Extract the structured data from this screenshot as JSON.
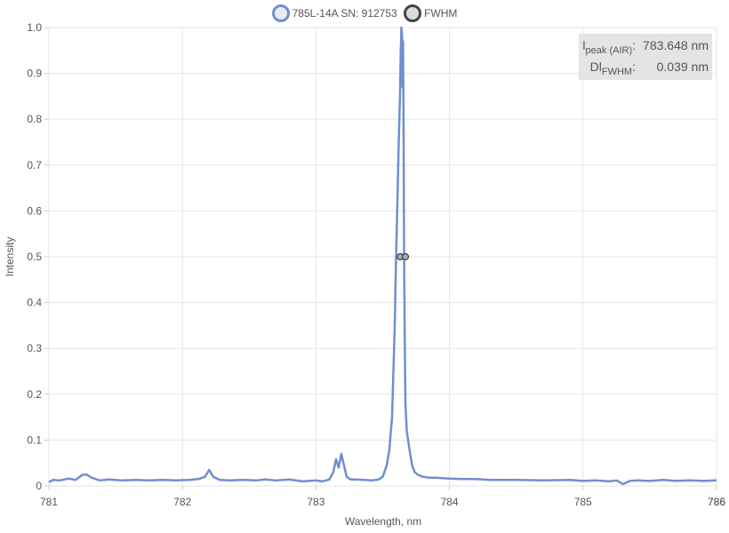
{
  "legend": {
    "series_label": "785L-14A SN: 912753",
    "fwhm_label": "FWHM"
  },
  "peak_box": {
    "peak_symbol": "l",
    "peak_sub": "peak (AIR)",
    "peak_value": "783.648 nm",
    "fwhm_symbol": "Dl",
    "fwhm_sub": "FWHM",
    "fwhm_value": "0.039 nm"
  },
  "colors": {
    "series": "#6f8fcf",
    "fwhm_marker": "#444444",
    "grid": "#e6e6e6",
    "box": "#e4e4e4"
  },
  "chart_data": {
    "type": "line",
    "xlabel": "Wavelength, nm",
    "ylabel": "Intensity",
    "xlim": [
      781,
      786
    ],
    "ylim": [
      0,
      1
    ],
    "x_ticks": [
      "781",
      "782",
      "783",
      "784",
      "785",
      "786"
    ],
    "x_end_label": "786",
    "y_ticks": [
      "0",
      "0.1",
      "0.2",
      "0.3",
      "0.4",
      "0.5",
      "0.6",
      "0.7",
      "0.8",
      "0.9",
      "1.0"
    ],
    "grid": true,
    "legend": "top",
    "series": [
      {
        "name": "785L-14A SN: 912753",
        "x": [
          781.0,
          781.03,
          781.08,
          781.15,
          781.2,
          781.25,
          781.28,
          781.32,
          781.38,
          781.45,
          781.55,
          781.65,
          781.75,
          781.85,
          781.95,
          782.05,
          782.12,
          782.17,
          782.2,
          782.23,
          782.28,
          782.35,
          782.45,
          782.55,
          782.62,
          782.7,
          782.8,
          782.9,
          783.0,
          783.05,
          783.1,
          783.13,
          783.15,
          783.17,
          783.19,
          783.21,
          783.23,
          783.26,
          783.3,
          783.36,
          783.42,
          783.47,
          783.5,
          783.53,
          783.55,
          783.57,
          783.59,
          783.6,
          783.61,
          783.62,
          783.63,
          783.635,
          783.64,
          783.645,
          783.648,
          783.652,
          783.656,
          783.66,
          783.665,
          783.67,
          783.68,
          783.69,
          783.7,
          783.72,
          783.74,
          783.76,
          783.8,
          783.85,
          783.9,
          784.0,
          784.1,
          784.2,
          784.3,
          784.5,
          784.7,
          784.9,
          785.0,
          785.1,
          785.2,
          785.25,
          785.3,
          785.35,
          785.4,
          785.5,
          785.6,
          785.7,
          785.8,
          785.9,
          786.0
        ],
        "values": [
          0.008,
          0.013,
          0.012,
          0.016,
          0.013,
          0.024,
          0.025,
          0.018,
          0.012,
          0.014,
          0.012,
          0.013,
          0.012,
          0.013,
          0.012,
          0.013,
          0.015,
          0.02,
          0.035,
          0.02,
          0.013,
          0.012,
          0.013,
          0.012,
          0.014,
          0.012,
          0.014,
          0.01,
          0.012,
          0.01,
          0.014,
          0.03,
          0.058,
          0.04,
          0.07,
          0.045,
          0.02,
          0.014,
          0.014,
          0.013,
          0.012,
          0.014,
          0.02,
          0.045,
          0.08,
          0.15,
          0.35,
          0.5,
          0.62,
          0.75,
          0.86,
          0.95,
          1.0,
          0.98,
          0.87,
          0.97,
          0.8,
          0.5,
          0.32,
          0.18,
          0.12,
          0.1,
          0.08,
          0.045,
          0.03,
          0.025,
          0.02,
          0.018,
          0.018,
          0.016,
          0.015,
          0.015,
          0.013,
          0.013,
          0.012,
          0.013,
          0.011,
          0.012,
          0.01,
          0.012,
          0.004,
          0.011,
          0.012,
          0.011,
          0.013,
          0.011,
          0.012,
          0.011,
          0.012
        ]
      }
    ],
    "fwhm_points": [
      [
        783.631,
        0.5
      ],
      [
        783.67,
        0.5
      ]
    ]
  }
}
